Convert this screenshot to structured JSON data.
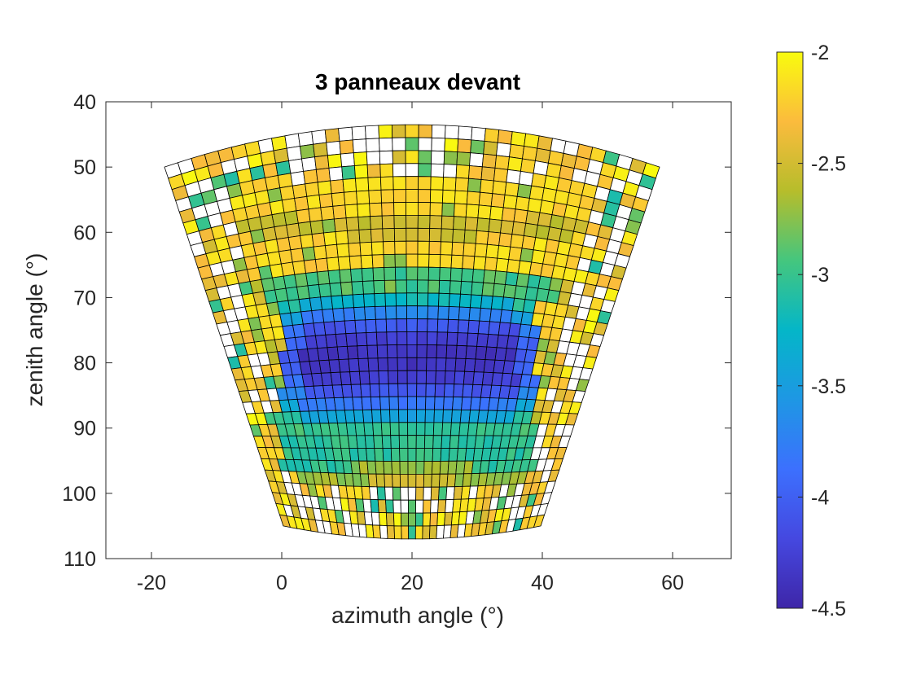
{
  "chart_data": {
    "type": "heatmap",
    "title": "3 panneaux devant",
    "xlabel": "azimuth angle (°)",
    "ylabel": "zenith angle (°)",
    "xlim": [
      -27,
      69
    ],
    "ylim": [
      40,
      110
    ],
    "y_reversed": true,
    "x_ticks": [
      -20,
      0,
      20,
      40,
      60
    ],
    "y_ticks": [
      40,
      50,
      60,
      70,
      80,
      90,
      100,
      110
    ],
    "grid": false,
    "colorbar": {
      "ticks": [
        -2,
        -2.5,
        -3,
        -3.5,
        -4,
        -4.5
      ],
      "tick_labels": [
        "-2",
        "-2.5",
        "-3",
        "-3.5",
        "-4",
        "-4.5"
      ],
      "limits": [
        -4.5,
        -2
      ],
      "colormap": "parula"
    },
    "mesh": {
      "columns": 37,
      "rows": 32,
      "azimuth_range": [
        -18,
        58
      ],
      "top_edge_zenith": {
        "edge": 50,
        "center": 43.5
      },
      "bottom_edge_zenith": {
        "edge": 105,
        "center": 107
      },
      "blue_block": {
        "azimuth": [
          0,
          39
        ],
        "zenith": [
          70,
          96
        ]
      },
      "min_value": -4.5,
      "max_value": -2
    }
  },
  "colors": {
    "axis": "#262626",
    "grid_line": "#000000",
    "missing_cell": "#ffffff"
  }
}
